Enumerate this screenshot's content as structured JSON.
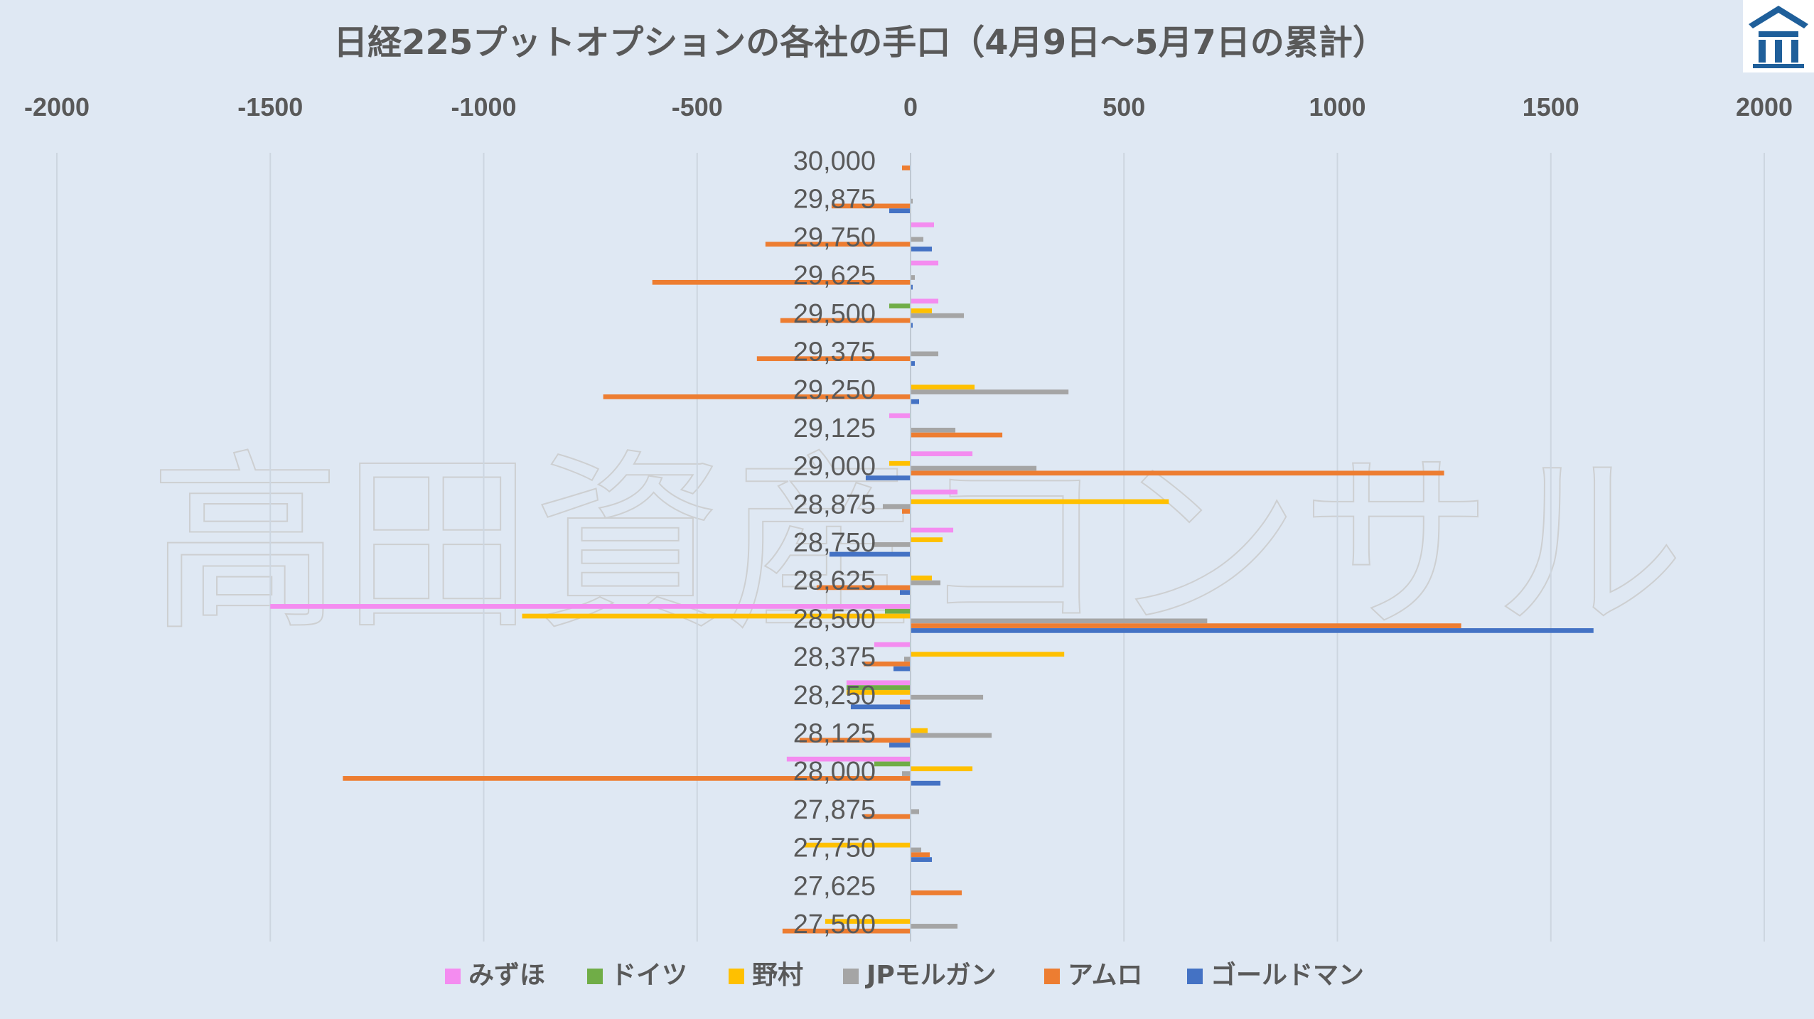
{
  "title": "日経225プットオプションの各社の手口（4月9日～5月7日の累計）",
  "watermark": "高田資産コンサル",
  "logo": {
    "name": "takada-logo"
  },
  "colors": {
    "background": "#dfe8f3",
    "grid": "#cdd6e0",
    "text": "#595959",
    "watermark": "#c9c9c9"
  },
  "chart_data": {
    "type": "bar",
    "orientation": "horizontal",
    "title": "日経225プットオプションの各社の手口（4月9日～5月7日の累計）",
    "xlim": [
      -2000,
      2000
    ],
    "xticks": [
      -2000,
      -1500,
      -1000,
      -500,
      0,
      500,
      1000,
      1500,
      2000
    ],
    "xtick_labels": [
      "-2000",
      "-1500",
      "-1000",
      "-500",
      "0",
      "500",
      "1000",
      "1500",
      "2000"
    ],
    "xaxis_position": "top",
    "grid": "vertical",
    "legend_position": "bottom",
    "categories": [
      "30,000",
      "29,875",
      "29,750",
      "29,625",
      "29,500",
      "29,375",
      "29,250",
      "29,125",
      "29,000",
      "28,875",
      "28,750",
      "28,625",
      "28,500",
      "28,375",
      "28,250",
      "28,125",
      "28,000",
      "27,875",
      "27,750",
      "27,625",
      "27,500"
    ],
    "series": [
      {
        "name": "みずほ",
        "color": "#f48cf0",
        "values": [
          0,
          0,
          55,
          65,
          65,
          0,
          0,
          -50,
          145,
          110,
          100,
          0,
          -1500,
          -85,
          -150,
          0,
          -290,
          0,
          0,
          0,
          0
        ]
      },
      {
        "name": "ドイツ",
        "color": "#70ad47",
        "values": [
          0,
          0,
          0,
          0,
          -50,
          0,
          0,
          0,
          0,
          0,
          0,
          0,
          -60,
          0,
          -150,
          0,
          -85,
          0,
          0,
          0,
          0
        ]
      },
      {
        "name": "野村",
        "color": "#ffc000",
        "values": [
          0,
          0,
          0,
          0,
          50,
          0,
          150,
          0,
          -50,
          605,
          75,
          50,
          -910,
          360,
          -150,
          40,
          145,
          0,
          -250,
          0,
          -200
        ]
      },
      {
        "name": "JPモルガン",
        "color": "#a5a5a5",
        "values": [
          0,
          5,
          30,
          10,
          125,
          65,
          370,
          105,
          295,
          -65,
          -90,
          70,
          695,
          -15,
          170,
          190,
          -20,
          20,
          25,
          0,
          110
        ]
      },
      {
        "name": "アムロ",
        "color": "#ed7d31",
        "values": [
          -20,
          -185,
          -340,
          -605,
          -305,
          -360,
          -720,
          215,
          1250,
          -20,
          0,
          -220,
          1290,
          -110,
          -25,
          -260,
          -1330,
          -110,
          45,
          120,
          -300
        ]
      },
      {
        "name": "ゴールドマン",
        "color": "#4472c4",
        "values": [
          0,
          -50,
          50,
          5,
          5,
          10,
          20,
          0,
          -105,
          0,
          -190,
          -25,
          1600,
          -40,
          -140,
          -50,
          70,
          0,
          50,
          0,
          0
        ]
      }
    ]
  }
}
